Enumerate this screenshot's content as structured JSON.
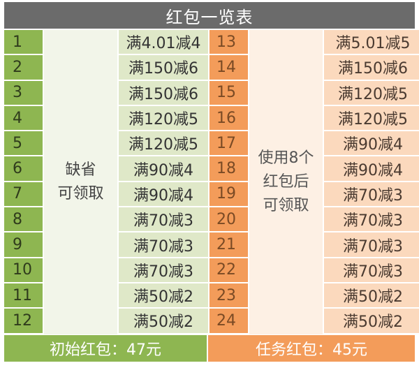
{
  "title": "红包一览表",
  "left": {
    "note_line1": "缺省",
    "note_line2": "可领取",
    "rows": [
      {
        "num": "1",
        "value": "满4.01减4"
      },
      {
        "num": "2",
        "value": "满150减6"
      },
      {
        "num": "3",
        "value": "满150减6"
      },
      {
        "num": "4",
        "value": "满120减5"
      },
      {
        "num": "5",
        "value": "满120减5"
      },
      {
        "num": "6",
        "value": "满90减4"
      },
      {
        "num": "7",
        "value": "满90减4"
      },
      {
        "num": "8",
        "value": "满70减3"
      },
      {
        "num": "9",
        "value": "满70减3"
      },
      {
        "num": "10",
        "value": "满70减3"
      },
      {
        "num": "11",
        "value": "满50减2"
      },
      {
        "num": "12",
        "value": "满50减2"
      }
    ],
    "total": "初始红包：47元"
  },
  "right": {
    "note_line1": "使用8个",
    "note_line2": "红包后",
    "note_line3": "可领取",
    "rows": [
      {
        "num": "13",
        "value": "满5.01减5"
      },
      {
        "num": "14",
        "value": "满150减6"
      },
      {
        "num": "15",
        "value": "满120减5"
      },
      {
        "num": "16",
        "value": "满120减5"
      },
      {
        "num": "17",
        "value": "满90减4"
      },
      {
        "num": "18",
        "value": "满90减4"
      },
      {
        "num": "19",
        "value": "满70减3"
      },
      {
        "num": "20",
        "value": "满70减3"
      },
      {
        "num": "21",
        "value": "满70减3"
      },
      {
        "num": "22",
        "value": "满70减3"
      },
      {
        "num": "23",
        "value": "满50减2"
      },
      {
        "num": "24",
        "value": "满50减2"
      }
    ],
    "total": "任务红包：45元"
  },
  "colors": {
    "header": "#6b6b6b",
    "green": "#8eb651",
    "orange": "#f39c5a"
  }
}
